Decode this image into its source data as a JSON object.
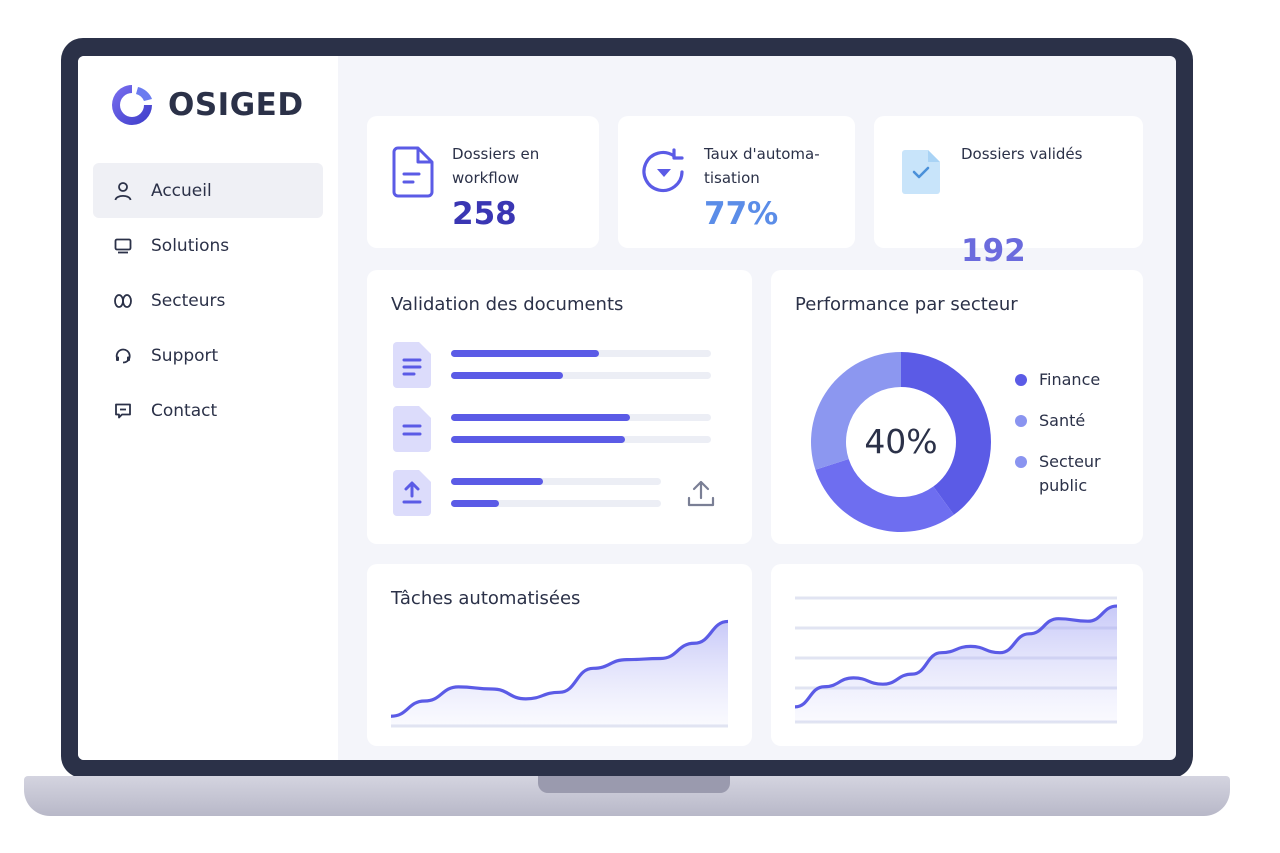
{
  "brand": {
    "name": "OSIGED",
    "accent": "#5b5be6"
  },
  "sidebar": {
    "items": [
      {
        "label": "Accueil",
        "icon": "user-icon",
        "active": true
      },
      {
        "label": "Solutions",
        "icon": "monitor-icon",
        "active": false
      },
      {
        "label": "Secteurs",
        "icon": "sectors-icon",
        "active": false
      },
      {
        "label": "Support",
        "icon": "support-icon",
        "active": false
      },
      {
        "label": "Contact",
        "icon": "message-icon",
        "active": false
      }
    ]
  },
  "stats": [
    {
      "label_line1": "Dossiers en",
      "label_line2": "workflow",
      "value": "258",
      "color": "#3a36b3"
    },
    {
      "label_line1": "Taux d'automa-",
      "label_line2": "tisation",
      "value": "77%",
      "color": "#5b8de8"
    },
    {
      "label_line1": "Dossiers validés",
      "label_line2": "",
      "value": "192",
      "color": "#6b6bdd"
    }
  ],
  "validation": {
    "title": "Validation des documents",
    "rows": [
      {
        "icon": "document-icon",
        "bars": [
          0.57,
          0.43
        ]
      },
      {
        "icon": "document-icon",
        "bars": [
          0.69,
          0.67
        ]
      },
      {
        "icon": "upload-document-icon",
        "bars": [
          0.44,
          0.23
        ]
      }
    ]
  },
  "performance": {
    "title": "Performance par secteur",
    "center_label": "40%",
    "segments": [
      {
        "name": "Finance",
        "value": 40,
        "color": "#5b5be6"
      },
      {
        "name": "Santé",
        "value": 30,
        "color": "#6e6ef0"
      },
      {
        "name": "Secteur public",
        "value": 30,
        "color": "#8c97f0"
      }
    ],
    "legend": [
      {
        "name": "Finance",
        "color": "#5b5be6"
      },
      {
        "name": "Santé",
        "color": "#8a94f0"
      },
      {
        "name": "Secteur",
        "name2": "public",
        "color": "#8a94f0"
      }
    ]
  },
  "tasks": {
    "title": "Tâches automatisées",
    "values": [
      0.08,
      0.22,
      0.35,
      0.33,
      0.24,
      0.3,
      0.52,
      0.6,
      0.61,
      0.75,
      0.95
    ]
  },
  "trend": {
    "values": [
      0.12,
      0.28,
      0.35,
      0.3,
      0.38,
      0.55,
      0.6,
      0.55,
      0.7,
      0.82,
      0.8,
      0.92
    ]
  }
}
